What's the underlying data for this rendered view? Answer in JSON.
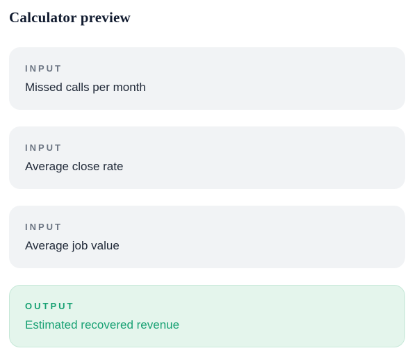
{
  "page": {
    "title": "Calculator preview"
  },
  "cards": [
    {
      "tag": "INPUT",
      "label": "Missed calls per month"
    },
    {
      "tag": "INPUT",
      "label": "Average close rate"
    },
    {
      "tag": "INPUT",
      "label": "Average job value"
    },
    {
      "tag": "OUTPUT",
      "label": "Estimated recovered revenue"
    }
  ],
  "colors": {
    "heading_text": "#121c30",
    "input_card_bg": "#f1f3f5",
    "input_tag_text": "#6b7482",
    "input_label_text": "#202938",
    "output_card_bg": "#e4f5ec",
    "output_card_border": "#c6e8d8",
    "output_text": "#18a173"
  }
}
